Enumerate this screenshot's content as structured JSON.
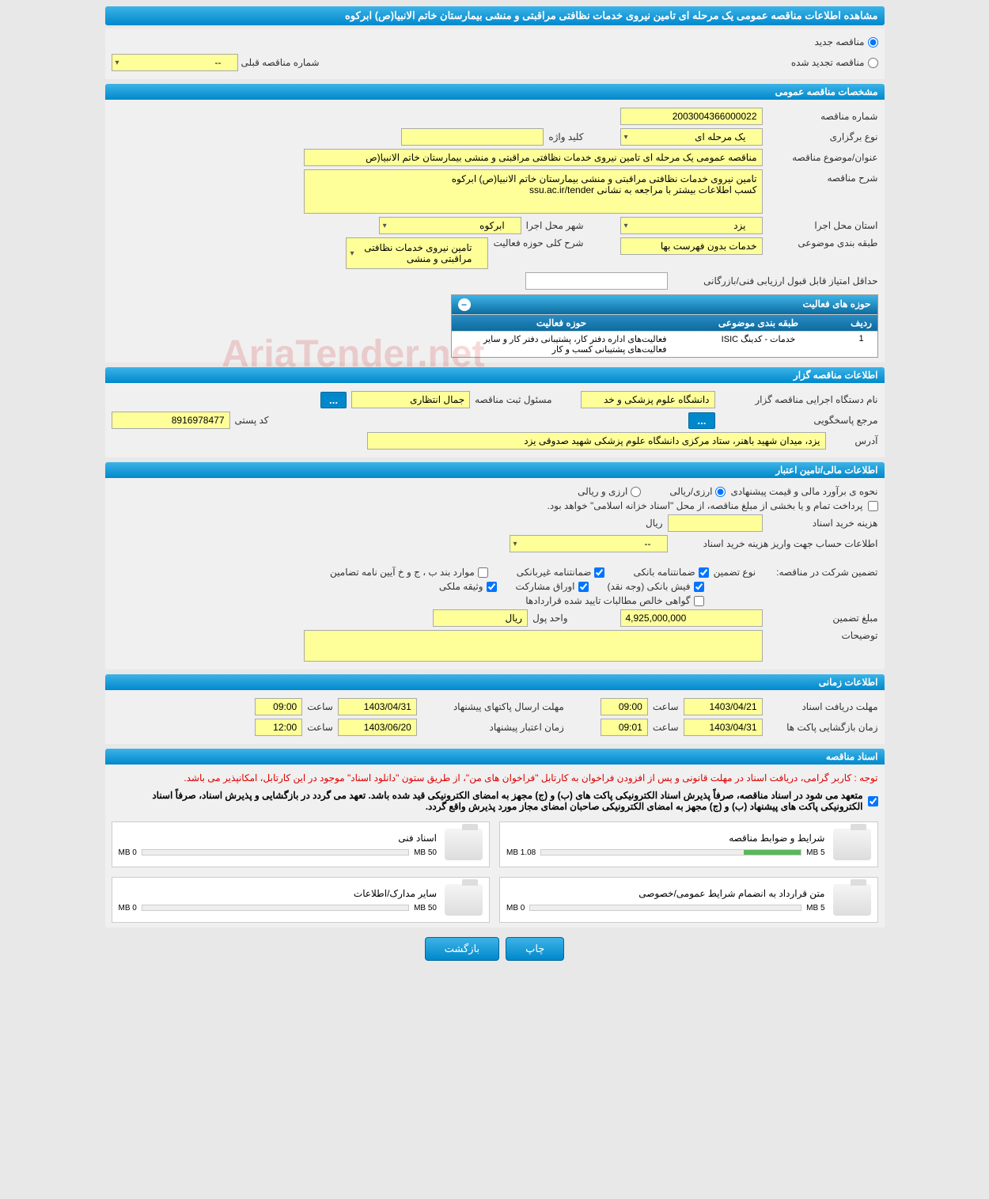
{
  "page": {
    "title": "مشاهده اطلاعات مناقصه عمومی یک مرحله ای تامین نیروی خدمات نظافتی مراقبتی و منشی بیمارستان خاتم الانبیا(ص) ابرکوه"
  },
  "tender_type": {
    "new_label": "مناقصه جدید",
    "new_checked": true,
    "renewed_label": "مناقصه تجدید شده",
    "renewed_checked": false,
    "prev_number_label": "شماره مناقصه قبلی",
    "prev_number_value": "--"
  },
  "general": {
    "section_title": "مشخصات مناقصه عمومی",
    "number_label": "شماره مناقصه",
    "number_value": "2003004366000022",
    "type_label": "نوع برگزاری",
    "type_value": "یک مرحله ای",
    "keyword_label": "کلید واژه",
    "keyword_value": "",
    "subject_label": "عنوان/موضوع مناقصه",
    "subject_value": "مناقصه عمومی یک مرحله ای تامین نیروی خدمات نظافتی مراقبتی و منشی بیمارستان خاتم الانبیا(ص",
    "desc_label": "شرح مناقصه",
    "desc_value": "تامین نیروی خدمات نظافتی مراقبتی و منشی بیمارستان خاتم الانبیا(ص) ابرکوه\nکسب اطلاعات بیشتر با مراجعه به نشانی ssu.ac.ir/tender",
    "province_label": "استان محل اجرا",
    "province_value": "یزد",
    "city_label": "شهر محل اجرا",
    "city_value": "ابرکوه",
    "category_label": "طبقه بندی موضوعی",
    "category_value": "خدمات بدون فهرست بها",
    "activity_desc_label": "شرح کلی حوزه فعالیت",
    "activity_desc_value": "تامین نیروی خدمات نظافتی مراقبتی و منشی",
    "min_score_label": "حداقل امتیاز قابل قبول ارزیابی فنی/بازرگانی",
    "min_score_value": ""
  },
  "activities": {
    "title": "حوزه های فعالیت",
    "col_row": "ردیف",
    "col_category": "طبقه بندی موضوعی",
    "col_activity": "حوزه فعالیت",
    "rows": [
      {
        "n": "1",
        "cat": "خدمات - کدینگ ISIC",
        "act": "فعالیت‌های اداره دفتر کار، پشتیبانی دفتر کار و سایر فعالیت‌های پشتیبانی کسب و کار"
      }
    ]
  },
  "organizer": {
    "section_title": "اطلاعات مناقصه گزار",
    "org_label": "نام دستگاه اجرایی مناقصه گزار",
    "org_value": "دانشگاه علوم پزشکی و خد",
    "officer_label": "مسئول ثبت مناقصه",
    "officer_value": "جمال انتظاری",
    "dots": "...",
    "contact_label": "مرجع پاسخگویی",
    "dots2": "...",
    "postal_label": "کد پستی",
    "postal_value": "8916978477",
    "address_label": "آدرس",
    "address_value": "یزد، میدان شهید باهنر، ستاد مرکزی دانشگاه علوم پزشکی شهید صدوقی یزد"
  },
  "financial": {
    "section_title": "اطلاعات مالی/تامین اعتبار",
    "method_label": "نحوه ی برآورد مالی و قیمت پیشنهادی",
    "rial_label": "ارزی/ریالی",
    "rial_checked": true,
    "both_label": "ارزی و ریالی",
    "both_checked": false,
    "treasury_note": "پرداخت تمام و یا بخشی از مبلغ مناقصه، از محل \"اسناد خزانه اسلامی\" خواهد بود.",
    "doc_cost_label": "هزینه خرید اسناد",
    "doc_cost_value": "",
    "doc_cost_unit": "ریال",
    "account_label": "اطلاعات حساب جهت واریز هزینه خرید اسناد",
    "account_value": "--",
    "guarantee_label": "تضمین شرکت در مناقصه:",
    "guarantee_type_label": "نوع تضمین",
    "cb_bank": "ضمانتنامه بانکی",
    "cb_nonbank": "ضمانتنامه غیربانکی",
    "cb_bylaw": "موارد بند ب ، ج و خ آیین نامه تضامین",
    "cb_cash": "فیش بانکی (وجه نقد)",
    "cb_shares": "اوراق مشارکت",
    "cb_property": "وثیقه ملکی",
    "cb_receivables": "گواهی خالص مطالبات تایید شده قراردادها",
    "amount_label": "مبلغ تضمین",
    "amount_value": "4,925,000,000",
    "unit_label": "واحد پول",
    "unit_value": "ریال",
    "notes_label": "توضیحات",
    "notes_value": ""
  },
  "timing": {
    "section_title": "اطلاعات زمانی",
    "doc_deadline_label": "مهلت دریافت اسناد",
    "doc_deadline_date": "1403/04/21",
    "doc_deadline_time_label": "ساعت",
    "doc_deadline_time": "09:00",
    "submit_label": "مهلت ارسال پاکتهای پیشنهاد",
    "submit_date": "1403/04/31",
    "submit_time_label": "ساعت",
    "submit_time": "09:00",
    "open_label": "زمان بازگشایی پاکت ها",
    "open_date": "1403/04/31",
    "open_time_label": "ساعت",
    "open_time": "09:01",
    "validity_label": "زمان اعتبار پیشنهاد",
    "validity_date": "1403/06/20",
    "validity_time_label": "ساعت",
    "validity_time": "12:00"
  },
  "documents": {
    "section_title": "اسناد مناقصه",
    "note1": "توجه : کاربر گرامی، دریافت اسناد در مهلت قانونی و پس از افزودن فراخوان به کارتابل \"فراخوان های من\"، از طریق ستون \"دانلود اسناد\" موجود در این کارتابل، امکانپذیر می باشد.",
    "note2": "متعهد می شود در اسناد مناقصه، صرفاً پذیرش اسناد الکترونیکی پاکت های (ب) و (ج) مجهز به امضای الکترونیکی قید شده باشد. تعهد می گردد در بازگشایی و پذیرش اسناد، صرفاً اسناد الکترونیکی پاکت های پیشنهاد (ب) و (ج) مجهز به امضای الکترونیکی صاحبان امضای مجاز مورد پذیرش واقع گردد.",
    "items": [
      {
        "title": "شرایط و ضوابط مناقصه",
        "used": "1.08 MB",
        "max": "5 MB",
        "fill_pct": 22
      },
      {
        "title": "اسناد فنی",
        "used": "0 MB",
        "max": "50 MB",
        "fill_pct": 0
      },
      {
        "title": "متن قرارداد به انضمام شرایط عمومی/خصوصی",
        "used": "0 MB",
        "max": "5 MB",
        "fill_pct": 0
      },
      {
        "title": "سایر مدارک/اطلاعات",
        "used": "0 MB",
        "max": "50 MB",
        "fill_pct": 0
      }
    ]
  },
  "buttons": {
    "print": "چاپ",
    "back": "بازگشت"
  },
  "watermark": "AriaTender.net"
}
